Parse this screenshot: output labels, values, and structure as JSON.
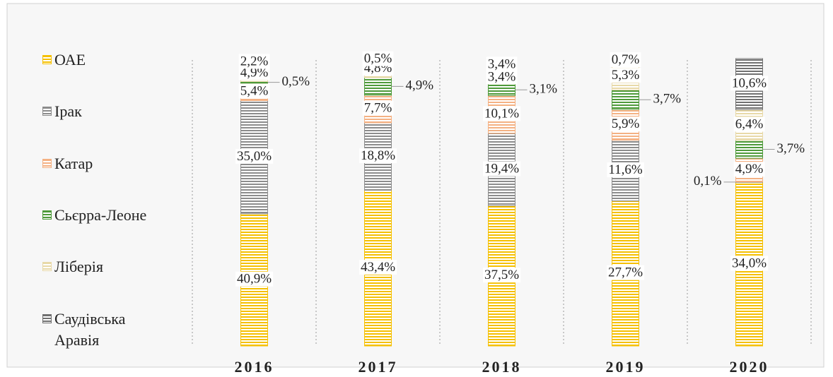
{
  "chart_data": {
    "type": "bar",
    "stacked": "percent",
    "categories": [
      "2016",
      "2017",
      "2018",
      "2019",
      "2020"
    ],
    "series": [
      {
        "name": "ОАЕ",
        "color": "#f5c000",
        "values": [
          40.9,
          43.4,
          37.5,
          27.7,
          34.0
        ],
        "value_labels": [
          "40,9%",
          "43,4%",
          "37,5%",
          "27,7%",
          "34,0%"
        ]
      },
      {
        "name": "Ірак",
        "color": "#8c8c8c",
        "values": [
          35.0,
          18.8,
          19.4,
          11.6,
          0.1
        ],
        "value_labels": [
          "35,0%",
          "18,8%",
          "19,4%",
          "11,6%",
          "0,1%"
        ]
      },
      {
        "name": "Катар",
        "color": "#f4b183",
        "values": [
          5.4,
          7.7,
          10.1,
          5.9,
          4.9
        ],
        "value_labels": [
          "5,4%",
          "7,7%",
          "10,1%",
          "5,9%",
          "4,9%"
        ]
      },
      {
        "name": "Сьєрра-Леоне",
        "color": "#4e9a3a",
        "values": [
          0.5,
          4.9,
          3.1,
          3.7,
          3.7
        ],
        "value_labels": [
          "0,5%",
          "4,9%",
          "3,1%",
          "3,7%",
          "3,7%"
        ]
      },
      {
        "name": "Ліберія",
        "color": "#e8d9a8",
        "values": [
          4.9,
          4.8,
          3.4,
          5.3,
          6.4
        ],
        "value_labels": [
          "4,9%",
          "4,8%",
          "3,4%",
          "5,3%",
          "6,4%"
        ]
      },
      {
        "name": "Саудівська Аравія",
        "color": "#707070",
        "values": [
          2.2,
          0.5,
          3.4,
          0.7,
          10.6
        ],
        "value_labels": [
          "2,2%",
          "0,5%",
          "3,4%",
          "0,7%",
          "10,6%"
        ]
      }
    ],
    "legend": "left"
  }
}
